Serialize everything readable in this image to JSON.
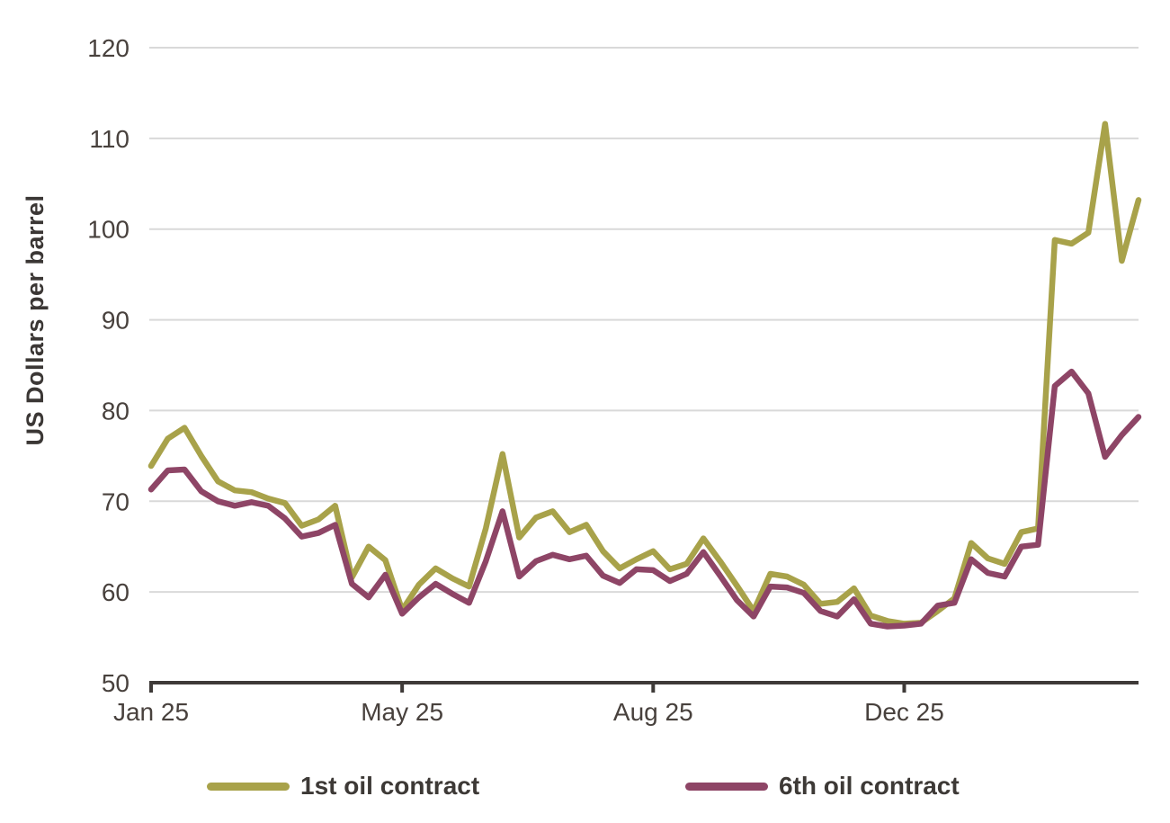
{
  "chart_data": {
    "type": "line",
    "title": "",
    "ylabel": "US Dollars per barrel",
    "xlabel": "",
    "ylim": [
      50,
      120
    ],
    "y_ticks": [
      50,
      60,
      70,
      80,
      90,
      100,
      110,
      120
    ],
    "gridline_values": [
      60,
      70,
      80,
      90,
      100,
      110,
      120
    ],
    "x_tick_labels": [
      "Jan 25",
      "May 25",
      "Aug 25",
      "Dec 25"
    ],
    "x_tick_indices": [
      0,
      15,
      30,
      45
    ],
    "n_points": 60,
    "grid": "horizontal",
    "legend_position": "bottom",
    "series": [
      {
        "name": "1st oil contract",
        "color": "#a8a24a",
        "values": [
          73.9,
          76.9,
          78.1,
          75.0,
          72.2,
          71.2,
          71.0,
          70.3,
          69.8,
          67.3,
          68.0,
          69.5,
          61.6,
          65.0,
          63.5,
          58.0,
          60.8,
          62.6,
          61.5,
          60.6,
          67.0,
          75.2,
          66.0,
          68.2,
          68.9,
          66.6,
          67.4,
          64.5,
          62.6,
          63.6,
          64.5,
          62.5,
          63.1,
          65.9,
          63.4,
          60.7,
          57.9,
          62.0,
          61.7,
          60.8,
          58.7,
          58.9,
          60.4,
          57.4,
          56.8,
          56.5,
          56.6,
          57.9,
          59.3,
          65.4,
          63.7,
          63.1,
          66.6,
          67.0,
          98.8,
          98.4,
          99.6,
          111.6,
          96.5,
          103.2
        ]
      },
      {
        "name": "6th oil contract",
        "color": "#8e4566",
        "values": [
          71.3,
          73.4,
          73.5,
          71.1,
          70.0,
          69.5,
          69.9,
          69.5,
          68.1,
          66.1,
          66.5,
          67.4,
          60.9,
          59.4,
          61.9,
          57.6,
          59.4,
          60.9,
          59.8,
          58.8,
          63.4,
          68.9,
          61.7,
          63.4,
          64.1,
          63.6,
          64.0,
          61.8,
          61.0,
          62.5,
          62.4,
          61.2,
          62.0,
          64.4,
          61.8,
          59.1,
          57.3,
          60.6,
          60.5,
          59.9,
          57.9,
          57.3,
          59.2,
          56.5,
          56.2,
          56.3,
          56.5,
          58.5,
          58.8,
          63.6,
          62.1,
          61.7,
          65.0,
          65.2,
          82.7,
          84.3,
          81.9,
          74.9,
          77.3,
          79.3
        ]
      }
    ]
  },
  "colors": {
    "grid": "#d9d9d9",
    "axis": "#3e3a38",
    "tick_label": "#48413d",
    "legend_text": "#3d3936"
  }
}
